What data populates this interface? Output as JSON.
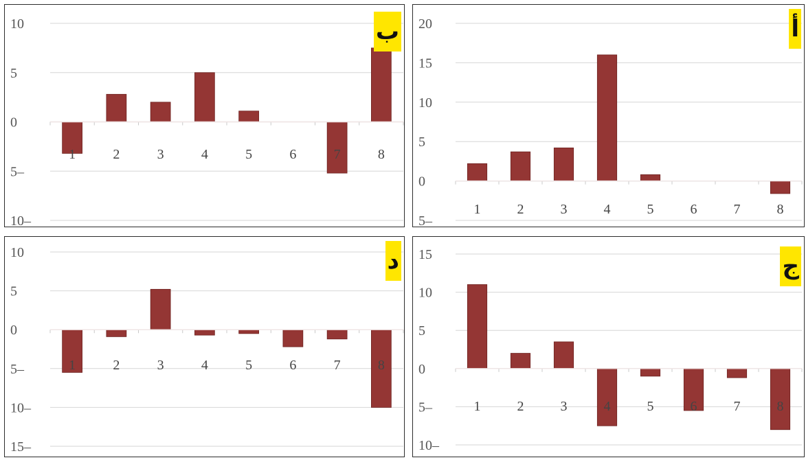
{
  "chart_data": [
    {
      "type": "bar",
      "label": "أ",
      "categories": [
        "1",
        "2",
        "3",
        "4",
        "5",
        "6",
        "7",
        "8"
      ],
      "values": [
        2.2,
        3.7,
        4.2,
        16,
        0.8,
        0,
        0,
        -1.6
      ],
      "ylim": [
        -5,
        20
      ],
      "yticks": [
        20,
        15,
        10,
        5,
        0,
        -5
      ],
      "ytick_labels": [
        "20",
        "15",
        "10",
        "5",
        "0",
        "5–"
      ],
      "bar_color": "#943634",
      "grid": true
    },
    {
      "type": "bar",
      "label": "ب",
      "categories": [
        "1",
        "2",
        "3",
        "4",
        "5",
        "6",
        "7",
        "8"
      ],
      "values": [
        -3.2,
        2.8,
        2,
        5,
        1.1,
        0,
        -5.2,
        7.5
      ],
      "ylim": [
        -10,
        10
      ],
      "yticks": [
        10,
        5,
        0,
        -5,
        -10
      ],
      "ytick_labels": [
        "10",
        "5",
        "0",
        "5–",
        "10–"
      ],
      "bar_color": "#943634",
      "grid": true
    },
    {
      "type": "bar",
      "label": "ج",
      "categories": [
        "1",
        "2",
        "3",
        "4",
        "5",
        "6",
        "7",
        "8"
      ],
      "values": [
        11,
        2,
        3.5,
        -7.5,
        -1,
        -5.5,
        -1.2,
        -8
      ],
      "ylim": [
        -10,
        15
      ],
      "yticks": [
        15,
        10,
        5,
        0,
        -5,
        -10
      ],
      "ytick_labels": [
        "15",
        "10",
        "5",
        "0",
        "5–",
        "10–"
      ],
      "bar_color": "#943634",
      "grid": true
    },
    {
      "type": "bar",
      "label": "د",
      "categories": [
        "1",
        "2",
        "3",
        "4",
        "5",
        "6",
        "7",
        "8"
      ],
      "values": [
        -5.5,
        -0.9,
        5.2,
        -0.7,
        -0.5,
        -2.2,
        -1.2,
        -10
      ],
      "ylim": [
        -15,
        10
      ],
      "yticks": [
        10,
        5,
        0,
        -5,
        -10,
        -15
      ],
      "ytick_labels": [
        "10",
        "5",
        "0",
        "5–",
        "10–",
        "15–"
      ],
      "bar_color": "#943634",
      "grid": true
    }
  ]
}
